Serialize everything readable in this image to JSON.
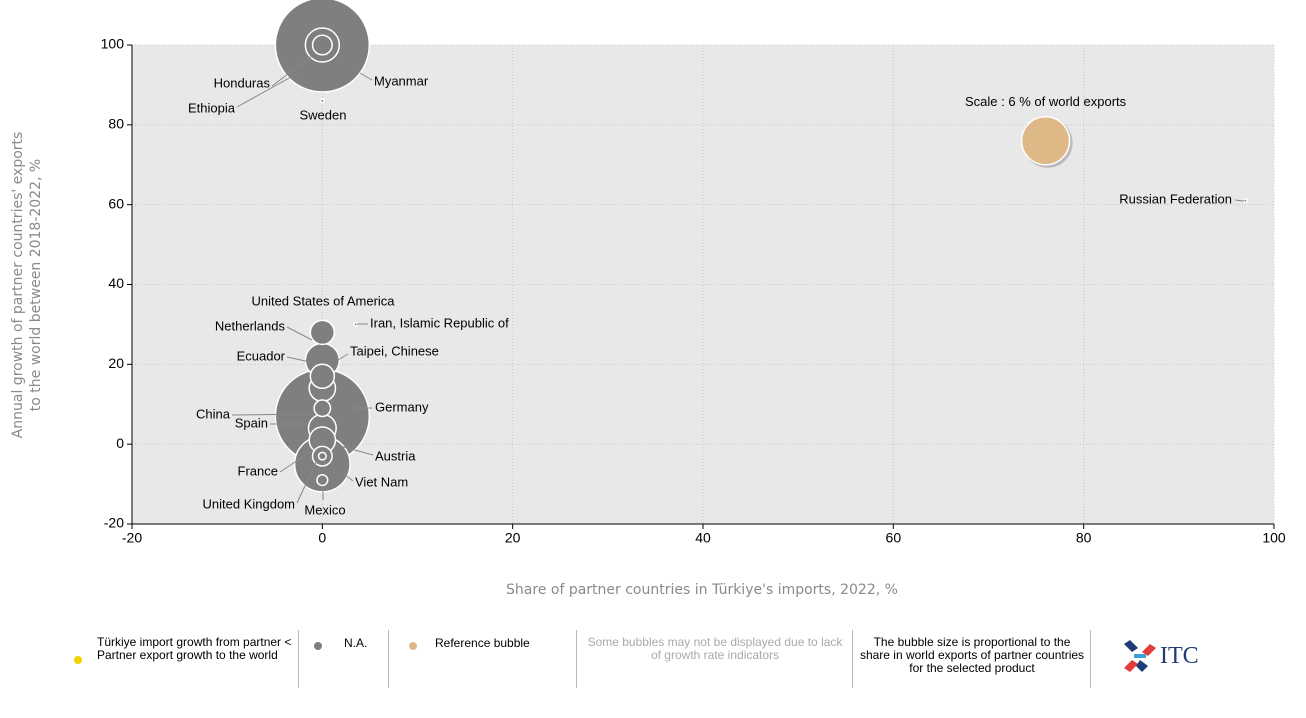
{
  "chart_data": {
    "type": "bubble",
    "x_label": "Share of partner countries in Türkiye's imports, 2022, %",
    "y_label": [
      "Annual growth of partner countries' exports",
      "to the world between 2018-2022, %"
    ],
    "xlim": [
      -20,
      100
    ],
    "xticks": [
      -20,
      0,
      20,
      40,
      60,
      80,
      100
    ],
    "ylim": [
      -20,
      100
    ],
    "yticks": [
      -20,
      0,
      20,
      40,
      60,
      80,
      100
    ],
    "grid": true,
    "series": [
      {
        "name": "Türkiye import growth from partner < Partner export growth to the world",
        "color": "#f2d100",
        "labels": [],
        "x": [],
        "y": [],
        "sizes": []
      },
      {
        "name": "N.A.",
        "color": "#7f7f7f",
        "labels": [
          "Germany",
          "Myanmar",
          "Viet Nam",
          "Honduras",
          "Taipei, Chinese",
          "Spain",
          "Ecuador",
          "France",
          "Netherlands",
          "United States of America",
          "Ethiopia",
          "Austria",
          "China",
          "Mexico",
          "United Kingdom",
          "Iran, Islamic Republic of",
          "Sweden",
          "Russian Federation"
        ],
        "x": [
          0,
          0,
          0,
          0,
          0,
          0,
          0,
          0,
          0,
          0,
          0,
          0,
          0,
          0,
          0,
          3.5,
          0,
          97
        ],
        "y": [
          7,
          100,
          -5,
          100,
          21,
          4,
          14,
          1,
          17,
          28,
          100,
          -3,
          9,
          -9,
          -3,
          30,
          86,
          61
        ],
        "sizes": [
          23,
          23,
          8,
          3,
          3,
          2,
          1.8,
          1.8,
          1.5,
          1.5,
          1,
          1,
          0.7,
          0.3,
          0.15,
          0.03,
          0.03,
          0.03
        ]
      }
    ],
    "reference": {
      "name": "Reference bubble",
      "label": "Scale : 6 % of world exports",
      "x": 76,
      "y": 76,
      "size": 6,
      "color": "#deb887"
    },
    "notes": [
      "Some bubbles may not be displayed due to lack of growth rate indicators",
      "The bubble size is proportional to the share in world exports of partner countries for the selected product"
    ],
    "logo": "ITC"
  }
}
